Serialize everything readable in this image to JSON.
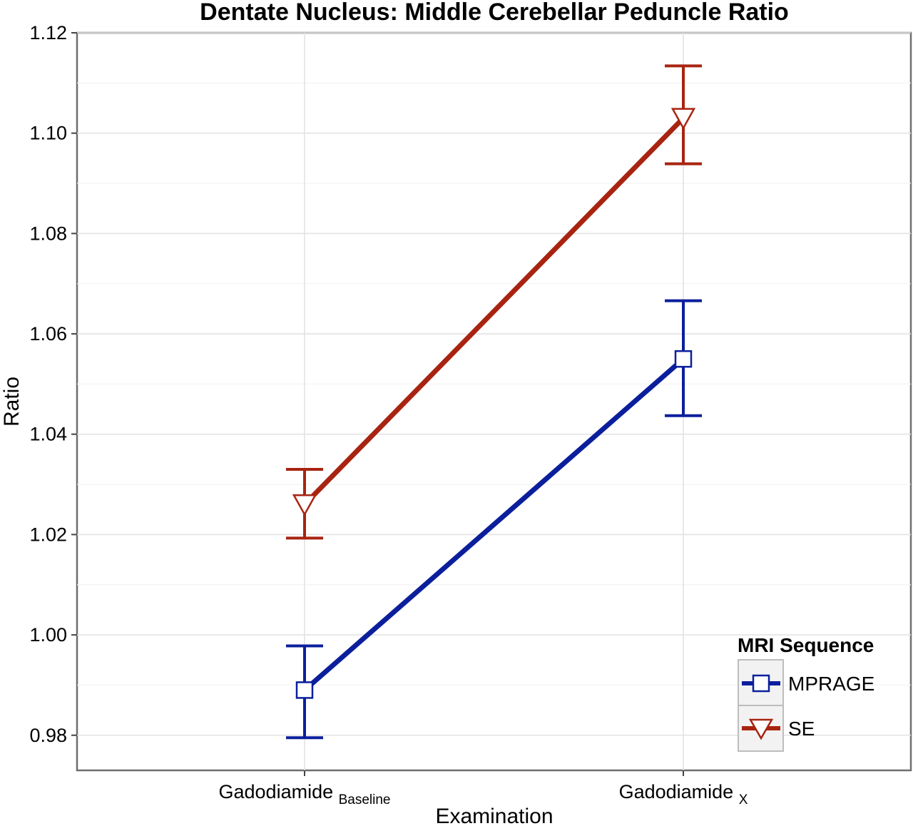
{
  "chart_data": {
    "type": "line",
    "title": "Dentate Nucleus: Middle Cerebellar Peduncle Ratio",
    "xlabel": "Examination",
    "ylabel": "Ratio",
    "categories": [
      {
        "main": "Gadodiamide",
        "sub": "Baseline"
      },
      {
        "main": "Gadodiamide",
        "sub": "X"
      }
    ],
    "ylim": [
      0.973,
      1.12
    ],
    "yticks": [
      0.98,
      1.0,
      1.02,
      1.04,
      1.06,
      1.08,
      1.1,
      1.12
    ],
    "ytick_labels": [
      "0.98",
      "1.00",
      "1.02",
      "1.04",
      "1.06",
      "1.08",
      "1.10",
      "1.12"
    ],
    "grid": true,
    "legend": {
      "title": "MRI Sequence",
      "position": "bottom-right"
    },
    "series": [
      {
        "name": "MPRAGE",
        "color": "#0b1f9c",
        "marker": "square",
        "values": [
          0.989,
          1.055
        ],
        "error_low": [
          0.9795,
          1.0437
        ],
        "error_high": [
          0.9978,
          1.0666
        ]
      },
      {
        "name": "SE",
        "color": "#a82411",
        "marker": "triangle-down",
        "values": [
          1.026,
          1.103
        ],
        "error_low": [
          1.0193,
          1.0939
        ],
        "error_high": [
          1.033,
          1.1134
        ]
      }
    ]
  }
}
